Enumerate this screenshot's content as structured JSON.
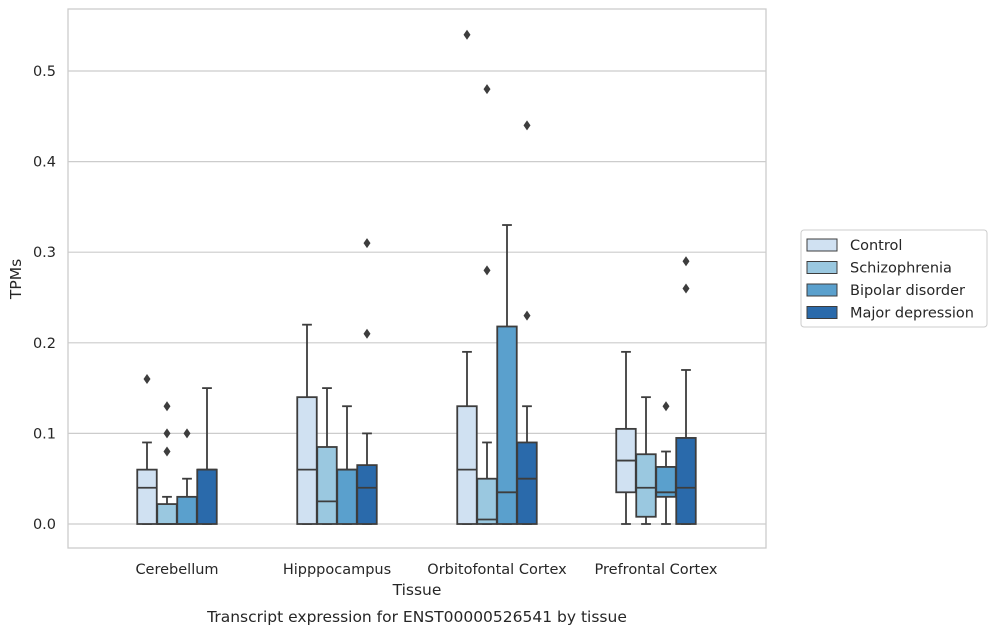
{
  "chart_data": {
    "type": "box",
    "xlabel": "Tissue",
    "ylabel": "TPMs",
    "caption": "Transcript expression for ENST00000526541 by tissue",
    "ylim": [
      -0.026,
      0.568
    ],
    "yticks": [
      0.0,
      0.1,
      0.2,
      0.3,
      0.4,
      0.5
    ],
    "ytick_labels": [
      "0.0",
      "0.1",
      "0.2",
      "0.3",
      "0.4",
      "0.5"
    ],
    "grid": "horizontal",
    "legend_placement": "right",
    "categories": [
      "Cerebellum",
      "Hipppocampus",
      "Orbitofontal Cortex",
      "Prefrontal Cortex"
    ],
    "series": [
      {
        "name": "Control",
        "color": "#d0e1f2",
        "boxes": [
          {
            "whislo": 0.0,
            "q1": 0.0,
            "med": 0.04,
            "q3": 0.06,
            "whishi": 0.09,
            "fliers": [
              0.16
            ]
          },
          {
            "whislo": 0.0,
            "q1": 0.0,
            "med": 0.06,
            "q3": 0.14,
            "whishi": 0.22,
            "fliers": []
          },
          {
            "whislo": 0.0,
            "q1": 0.0,
            "med": 0.06,
            "q3": 0.13,
            "whishi": 0.19,
            "fliers": [
              0.54
            ]
          },
          {
            "whislo": 0.0,
            "q1": 0.035,
            "med": 0.07,
            "q3": 0.105,
            "whishi": 0.19,
            "fliers": []
          }
        ]
      },
      {
        "name": "Schizophrenia",
        "color": "#9ac8e0",
        "boxes": [
          {
            "whislo": 0.0,
            "q1": 0.0,
            "med": 0.0,
            "q3": 0.022,
            "whishi": 0.03,
            "fliers": [
              0.08,
              0.1,
              0.13
            ]
          },
          {
            "whislo": 0.0,
            "q1": 0.0,
            "med": 0.025,
            "q3": 0.085,
            "whishi": 0.15,
            "fliers": []
          },
          {
            "whislo": 0.0,
            "q1": 0.0,
            "med": 0.005,
            "q3": 0.05,
            "whishi": 0.09,
            "fliers": [
              0.28,
              0.48
            ]
          },
          {
            "whislo": 0.0,
            "q1": 0.008,
            "med": 0.04,
            "q3": 0.077,
            "whishi": 0.14,
            "fliers": []
          }
        ]
      },
      {
        "name": "Bipolar disorder",
        "color": "#5aa0cd",
        "boxes": [
          {
            "whislo": 0.0,
            "q1": 0.0,
            "med": 0.0,
            "q3": 0.03,
            "whishi": 0.05,
            "fliers": [
              0.1
            ]
          },
          {
            "whislo": 0.0,
            "q1": 0.0,
            "med": 0.06,
            "q3": 0.06,
            "whishi": 0.13,
            "fliers": []
          },
          {
            "whislo": 0.0,
            "q1": 0.0,
            "med": 0.035,
            "q3": 0.218,
            "whishi": 0.33,
            "fliers": []
          },
          {
            "whislo": 0.0,
            "q1": 0.03,
            "med": 0.035,
            "q3": 0.063,
            "whishi": 0.08,
            "fliers": [
              0.13
            ]
          }
        ]
      },
      {
        "name": "Major depression",
        "color": "#2a6aab",
        "boxes": [
          {
            "whislo": 0.0,
            "q1": 0.0,
            "med": 0.06,
            "q3": 0.06,
            "whishi": 0.15,
            "fliers": []
          },
          {
            "whislo": 0.0,
            "q1": 0.0,
            "med": 0.04,
            "q3": 0.065,
            "whishi": 0.1,
            "fliers": [
              0.21,
              0.31
            ]
          },
          {
            "whislo": 0.0,
            "q1": 0.0,
            "med": 0.05,
            "q3": 0.09,
            "whishi": 0.13,
            "fliers": [
              0.23,
              0.44
            ]
          },
          {
            "whislo": 0.0,
            "q1": 0.0,
            "med": 0.04,
            "q3": 0.095,
            "whishi": 0.17,
            "fliers": [
              0.26,
              0.29
            ]
          }
        ]
      }
    ]
  }
}
